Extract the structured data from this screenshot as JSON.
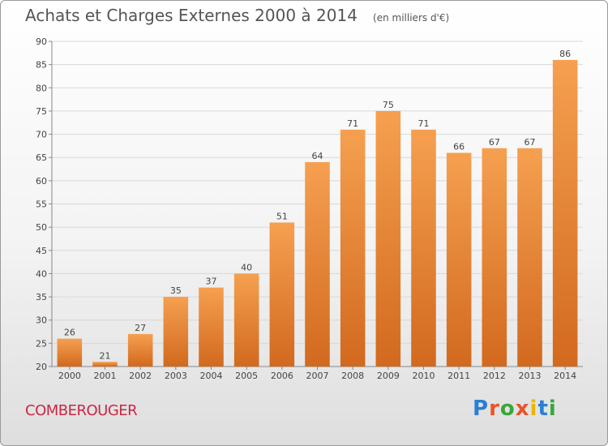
{
  "chart_data": {
    "type": "bar",
    "title": "Achats et Charges Externes 2000 à 2014",
    "subtitle": "(en milliers d'€)",
    "categories": [
      "2000",
      "2001",
      "2002",
      "2003",
      "2004",
      "2005",
      "2006",
      "2007",
      "2008",
      "2009",
      "2010",
      "2011",
      "2012",
      "2013",
      "2014"
    ],
    "values": [
      26,
      21,
      27,
      35,
      37,
      40,
      51,
      64,
      71,
      75,
      71,
      66,
      67,
      67,
      86
    ],
    "ylim": [
      20,
      90
    ],
    "yticks": [
      20,
      25,
      30,
      35,
      40,
      45,
      50,
      55,
      60,
      65,
      70,
      75,
      80,
      85,
      90
    ],
    "grid": true,
    "bar_color_top": "#f5a050",
    "bar_color_bottom": "#d2691e",
    "xlabel": "",
    "ylabel": ""
  },
  "footer": {
    "city": "COMBEROUGER",
    "brand": [
      "P",
      "r",
      "o",
      "x",
      "i",
      "t",
      "i"
    ],
    "brand_colors": [
      "#2a7fd4",
      "#e8542a",
      "#3aa63a",
      "#e8542a",
      "#f0b400",
      "#2a7fd4",
      "#3aa63a"
    ]
  }
}
